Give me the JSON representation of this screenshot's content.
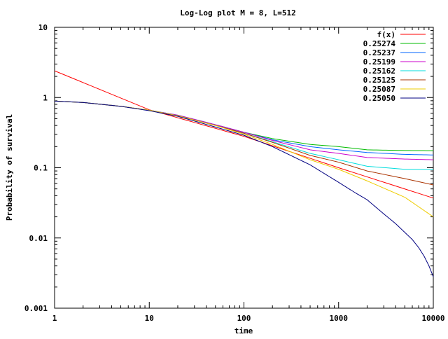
{
  "chart_data": {
    "type": "line",
    "title": "Log-Log plot M = 8, L=512",
    "xlabel": "time",
    "ylabel": "Probability of survival",
    "x_scale": "log",
    "y_scale": "log",
    "xlim": [
      1,
      10000
    ],
    "ylim": [
      0.001,
      10
    ],
    "x_ticks": [
      {
        "value": 1,
        "label": "1"
      },
      {
        "value": 10,
        "label": "10"
      },
      {
        "value": 100,
        "label": "100"
      },
      {
        "value": 1000,
        "label": "1000"
      },
      {
        "value": 10000,
        "label": "10000"
      }
    ],
    "y_ticks": [
      {
        "value": 0.001,
        "label": "0.001"
      },
      {
        "value": 0.01,
        "label": "0.01"
      },
      {
        "value": 0.1,
        "label": "0.1"
      },
      {
        "value": 1,
        "label": "1"
      },
      {
        "value": 10,
        "label": "10"
      }
    ],
    "grid": false,
    "legend_position": "top-right",
    "series": [
      {
        "name": "f(x)",
        "color": "#ff0000",
        "x": [
          1,
          10,
          100,
          1000,
          10000
        ],
        "y": [
          2.4,
          0.67,
          0.28,
          0.1,
          0.037
        ]
      },
      {
        "name": "0.25274",
        "color": "#00bb00",
        "x": [
          1,
          2,
          5,
          10,
          20,
          50,
          100,
          200,
          500,
          1000,
          2000,
          5000,
          10000
        ],
        "y": [
          0.89,
          0.85,
          0.75,
          0.66,
          0.56,
          0.41,
          0.32,
          0.26,
          0.215,
          0.2,
          0.18,
          0.176,
          0.175
        ]
      },
      {
        "name": "0.25237",
        "color": "#0066ff",
        "x": [
          1,
          2,
          5,
          10,
          20,
          50,
          100,
          200,
          500,
          1000,
          2000,
          5000,
          10000
        ],
        "y": [
          0.89,
          0.85,
          0.75,
          0.66,
          0.56,
          0.41,
          0.32,
          0.25,
          0.2,
          0.18,
          0.165,
          0.155,
          0.152
        ]
      },
      {
        "name": "0.25199",
        "color": "#cc00cc",
        "x": [
          1,
          2,
          5,
          10,
          20,
          50,
          100,
          200,
          500,
          1000,
          2000,
          5000,
          10000
        ],
        "y": [
          0.89,
          0.85,
          0.75,
          0.66,
          0.56,
          0.41,
          0.32,
          0.245,
          0.18,
          0.16,
          0.14,
          0.133,
          0.13
        ]
      },
      {
        "name": "0.25162",
        "color": "#00dddd",
        "x": [
          1,
          2,
          5,
          10,
          20,
          50,
          100,
          200,
          500,
          1000,
          2000,
          5000,
          10000
        ],
        "y": [
          0.89,
          0.85,
          0.75,
          0.66,
          0.55,
          0.4,
          0.31,
          0.235,
          0.16,
          0.13,
          0.105,
          0.095,
          0.095
        ]
      },
      {
        "name": "0.25125",
        "color": "#aa3300",
        "x": [
          1,
          2,
          5,
          10,
          20,
          50,
          100,
          200,
          500,
          1000,
          2000,
          5000,
          10000
        ],
        "y": [
          0.89,
          0.85,
          0.75,
          0.66,
          0.55,
          0.4,
          0.31,
          0.23,
          0.15,
          0.12,
          0.09,
          0.07,
          0.057
        ]
      },
      {
        "name": "0.25087",
        "color": "#eecc00",
        "x": [
          1,
          2,
          5,
          10,
          20,
          50,
          100,
          200,
          500,
          1000,
          2000,
          5000,
          10000
        ],
        "y": [
          0.89,
          0.85,
          0.75,
          0.66,
          0.55,
          0.4,
          0.3,
          0.215,
          0.13,
          0.095,
          0.065,
          0.038,
          0.02
        ]
      },
      {
        "name": "0.25050",
        "color": "#000080",
        "x": [
          1,
          2,
          5,
          10,
          20,
          50,
          100,
          200,
          500,
          1000,
          1500,
          2000,
          3000,
          4000,
          5000,
          6000,
          7000,
          8000,
          9000,
          10000
        ],
        "y": [
          0.89,
          0.85,
          0.75,
          0.65,
          0.54,
          0.38,
          0.29,
          0.2,
          0.11,
          0.062,
          0.044,
          0.035,
          0.022,
          0.016,
          0.012,
          0.0095,
          0.0073,
          0.0055,
          0.004,
          0.0028
        ]
      }
    ]
  }
}
